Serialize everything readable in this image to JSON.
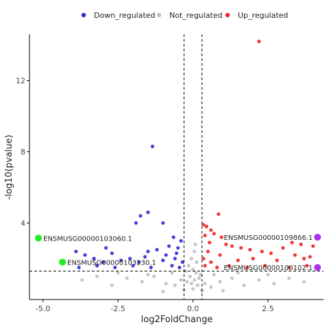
{
  "chart_data": {
    "type": "scatter",
    "title": "",
    "xlabel": "log2FoldChange",
    "ylabel": "-log10(pvalue)",
    "xlim": [
      -5.45,
      4.35
    ],
    "ylim": [
      -0.3,
      14.6
    ],
    "x_ticks": [
      {
        "value": -5.0,
        "label": "-5.0"
      },
      {
        "value": -2.5,
        "label": "-2.5"
      },
      {
        "value": 0.0,
        "label": "0.0"
      },
      {
        "value": 2.5,
        "label": "2.5"
      }
    ],
    "y_ticks": [
      {
        "value": 4,
        "label": "4"
      },
      {
        "value": 8,
        "label": "8"
      },
      {
        "value": 12,
        "label": "12"
      }
    ],
    "grid": false,
    "legend": {
      "position": "top",
      "entries": [
        {
          "name": "Down_regulated",
          "color": "#2b2bd6"
        },
        {
          "name": "Not_regulated",
          "color": "#c0c0c0"
        },
        {
          "name": "Up_regulated",
          "color": "#ee2222"
        }
      ]
    },
    "thresholds": {
      "log2fc": [
        -0.3,
        0.3
      ],
      "neg_log10_pvalue": 1.3
    },
    "series": [
      {
        "name": "Up_regulated",
        "color": "#ee2222",
        "points": [
          [
            2.2,
            14.2
          ],
          [
            0.85,
            4.5
          ],
          [
            0.35,
            3.9
          ],
          [
            0.45,
            3.8
          ],
          [
            0.6,
            3.6
          ],
          [
            0.7,
            3.4
          ],
          [
            0.4,
            3.3
          ],
          [
            0.95,
            3.2
          ],
          [
            0.55,
            2.9
          ],
          [
            1.1,
            2.8
          ],
          [
            1.3,
            2.7
          ],
          [
            1.6,
            2.6
          ],
          [
            1.9,
            2.5
          ],
          [
            2.3,
            2.4
          ],
          [
            2.6,
            2.3
          ],
          [
            3.0,
            2.6
          ],
          [
            3.4,
            2.2
          ],
          [
            3.7,
            2.0
          ],
          [
            3.9,
            2.1
          ],
          [
            3.6,
            2.8
          ],
          [
            3.3,
            2.9
          ],
          [
            4.0,
            2.7
          ],
          [
            2.8,
            1.9
          ],
          [
            2.0,
            2.0
          ],
          [
            1.5,
            1.9
          ],
          [
            0.9,
            2.2
          ],
          [
            0.5,
            2.4
          ],
          [
            0.35,
            2.0
          ],
          [
            0.4,
            1.6
          ],
          [
            0.6,
            1.8
          ],
          [
            0.8,
            1.5
          ],
          [
            1.2,
            1.6
          ],
          [
            1.8,
            1.5
          ],
          [
            2.4,
            1.6
          ],
          [
            3.2,
            1.5
          ],
          [
            3.8,
            1.6
          ]
        ]
      },
      {
        "name": "Down_regulated",
        "color": "#2b2bd6",
        "points": [
          [
            -1.35,
            8.3
          ],
          [
            -1.75,
            4.4
          ],
          [
            -1.5,
            4.6
          ],
          [
            -1.9,
            4.0
          ],
          [
            -1.0,
            4.0
          ],
          [
            -0.65,
            3.2
          ],
          [
            -0.4,
            3.0
          ],
          [
            -0.5,
            2.6
          ],
          [
            -0.8,
            2.7
          ],
          [
            -1.2,
            2.5
          ],
          [
            -1.5,
            2.4
          ],
          [
            -2.1,
            2.0
          ],
          [
            -3.9,
            2.4
          ],
          [
            -3.6,
            2.2
          ],
          [
            -3.3,
            2.0
          ],
          [
            -3.0,
            1.8
          ],
          [
            -2.7,
            2.3
          ],
          [
            -2.4,
            1.9
          ],
          [
            -1.8,
            1.8
          ],
          [
            -1.0,
            1.9
          ],
          [
            -0.6,
            2.0
          ],
          [
            -0.35,
            1.8
          ],
          [
            -0.45,
            1.5
          ],
          [
            -0.7,
            1.6
          ],
          [
            -1.4,
            1.5
          ],
          [
            -2.0,
            1.6
          ],
          [
            -2.6,
            1.5
          ],
          [
            -3.2,
            1.6
          ],
          [
            -3.8,
            1.5
          ],
          [
            -0.9,
            2.2
          ],
          [
            -0.55,
            2.3
          ],
          [
            -1.6,
            2.1
          ],
          [
            -2.9,
            2.6
          ]
        ]
      },
      {
        "name": "Not_regulated",
        "color": "#c0c0c0",
        "points": [
          [
            -0.05,
            0.6
          ],
          [
            0.05,
            0.8
          ],
          [
            -0.1,
            1.0
          ],
          [
            0.1,
            1.2
          ],
          [
            0.0,
            0.3
          ],
          [
            0.15,
            0.5
          ],
          [
            -0.2,
            0.7
          ],
          [
            0.2,
            0.9
          ],
          [
            0.0,
            1.4
          ],
          [
            -0.15,
            1.6
          ],
          [
            0.12,
            1.8
          ],
          [
            0.25,
            1.1
          ],
          [
            -0.25,
            1.3
          ],
          [
            0.4,
            0.6
          ],
          [
            -0.4,
            0.8
          ],
          [
            0.6,
            0.4
          ],
          [
            -0.6,
            0.5
          ],
          [
            0.9,
            0.7
          ],
          [
            -0.9,
            0.6
          ],
          [
            1.3,
            0.9
          ],
          [
            -1.3,
            1.0
          ],
          [
            1.7,
            0.5
          ],
          [
            -1.7,
            0.7
          ],
          [
            2.2,
            0.8
          ],
          [
            -2.2,
            0.9
          ],
          [
            2.7,
            0.6
          ],
          [
            -2.7,
            0.5
          ],
          [
            3.2,
            0.9
          ],
          [
            -3.2,
            1.0
          ],
          [
            3.7,
            0.7
          ],
          [
            -3.7,
            0.8
          ],
          [
            0.7,
            1.1
          ],
          [
            -0.7,
            1.2
          ],
          [
            1.5,
            1.2
          ],
          [
            -1.5,
            1.1
          ],
          [
            2.5,
            1.1
          ],
          [
            -2.5,
            1.2
          ],
          [
            0.3,
            0.2
          ],
          [
            -0.3,
            0.25
          ],
          [
            1.0,
            0.2
          ],
          [
            -1.0,
            0.15
          ],
          [
            0.05,
            2.4
          ],
          [
            -0.05,
            2.0
          ],
          [
            0.08,
            2.8
          ]
        ]
      }
    ],
    "highlighted": [
      {
        "label": "ENSMUSG00000103060.1",
        "x": -5.15,
        "y": 3.15,
        "color": "#22ee22"
      },
      {
        "label": "ENSMUSG00000103230.1",
        "x": -4.35,
        "y": 1.8,
        "color": "#22ee22"
      },
      {
        "label": "ENSMUSG00000109866.1",
        "x": 4.15,
        "y": 3.2,
        "color": "#aa33ee"
      },
      {
        "label": "ENSMUSG00000100102.1",
        "x": 4.15,
        "y": 1.5,
        "color": "#aa33ee"
      }
    ]
  }
}
